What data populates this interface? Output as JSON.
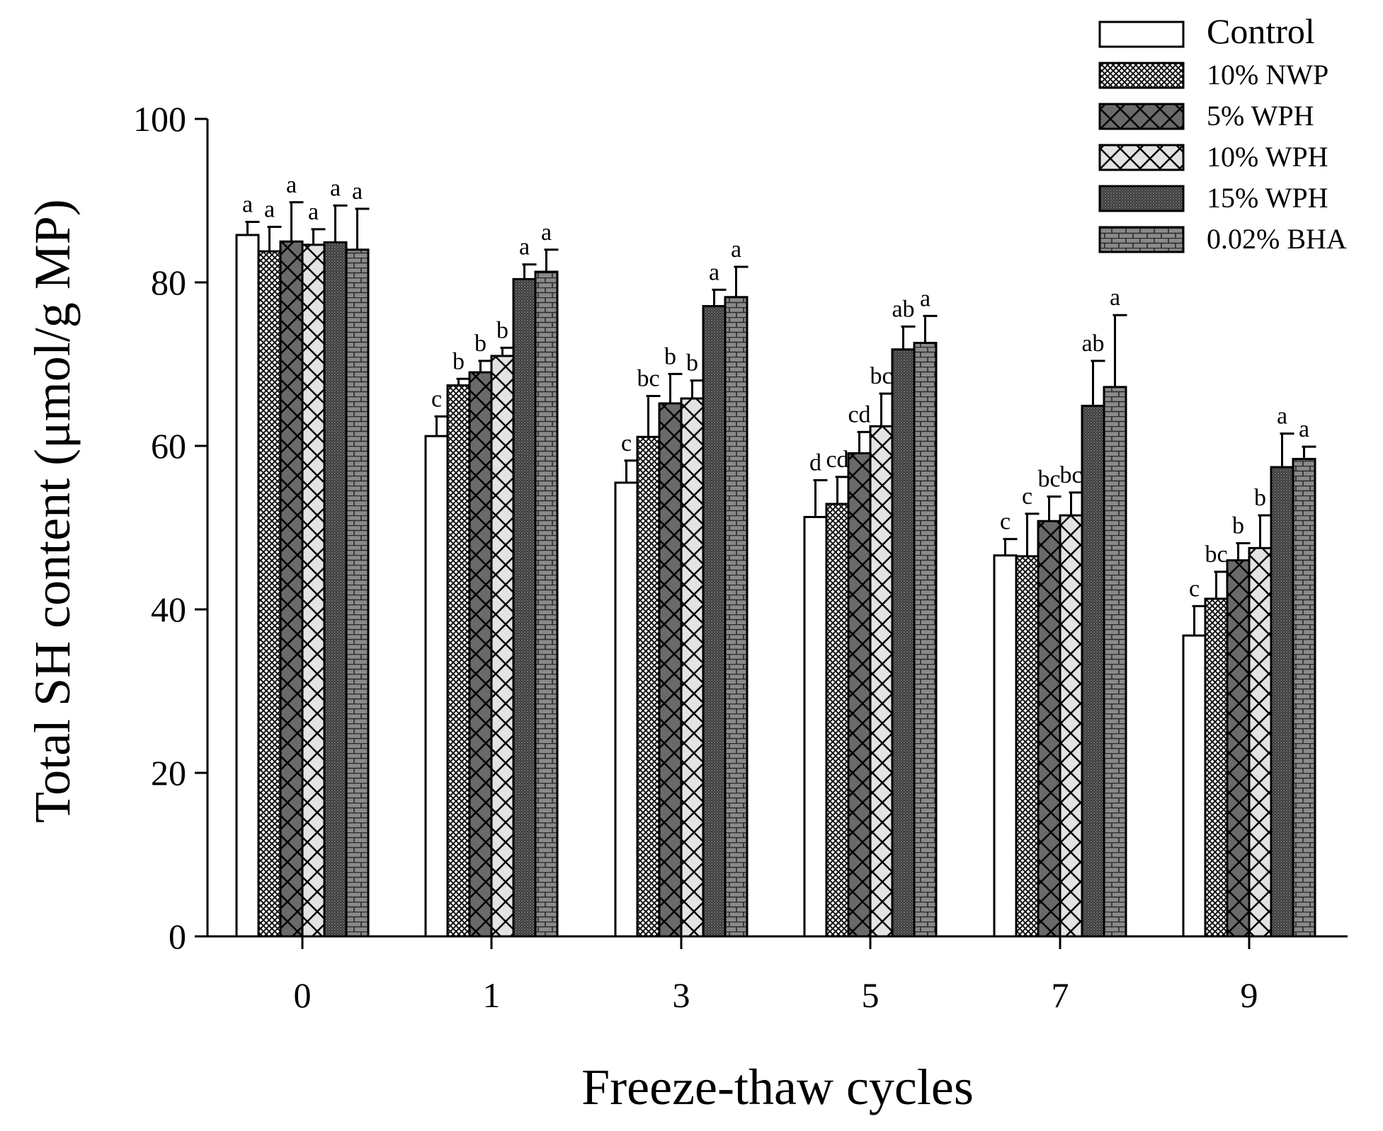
{
  "chart_data": {
    "type": "bar",
    "xlabel": "Freeze-thaw cycles",
    "ylabel": "Total SH content (μmol/g MP)",
    "ylim": [
      0,
      100
    ],
    "yticks": [
      "0",
      "20",
      "40",
      "60",
      "80",
      "100"
    ],
    "categories": [
      "0",
      "1",
      "3",
      "5",
      "7",
      "9"
    ],
    "grid": false,
    "legend_position": "top-right",
    "error_bars": true,
    "series": [
      {
        "name": "Control",
        "pattern": "plain",
        "values": [
          85.8,
          61.2,
          55.5,
          51.3,
          46.6,
          36.8
        ],
        "errors": [
          1.6,
          2.4,
          2.7,
          4.5,
          2.0,
          3.6
        ],
        "labels": [
          "a",
          "c",
          "c",
          "d",
          "c",
          "c"
        ]
      },
      {
        "name": "10% NWP",
        "pattern": "crosshatch",
        "values": [
          83.8,
          67.4,
          61.1,
          52.9,
          46.5,
          41.3
        ],
        "errors": [
          3.0,
          0.8,
          5.0,
          3.3,
          5.2,
          3.3
        ],
        "labels": [
          "a",
          "b",
          "bc",
          "cd",
          "c",
          "bc"
        ]
      },
      {
        "name": "5% WPH",
        "pattern": "diamond-dark",
        "values": [
          85.0,
          69.0,
          65.2,
          59.1,
          50.8,
          46.0
        ],
        "errors": [
          4.8,
          1.4,
          3.6,
          2.6,
          3.0,
          2.1
        ],
        "labels": [
          "a",
          "b",
          "b",
          "cd",
          "bc",
          "b"
        ]
      },
      {
        "name": "10% WPH",
        "pattern": "diamond-light",
        "values": [
          84.6,
          71.0,
          65.8,
          62.4,
          51.5,
          47.5
        ],
        "errors": [
          1.9,
          1.0,
          2.2,
          4.0,
          2.8,
          4.0
        ],
        "labels": [
          "a",
          "b",
          "b",
          "bc",
          "bc",
          "b"
        ]
      },
      {
        "name": "15% WPH",
        "pattern": "dense-dark",
        "values": [
          84.9,
          80.4,
          77.1,
          71.8,
          64.9,
          57.4
        ],
        "errors": [
          4.5,
          1.8,
          2.0,
          2.8,
          5.5,
          4.1
        ],
        "labels": [
          "a",
          "a",
          "a",
          "ab",
          "ab",
          "a"
        ]
      },
      {
        "name": "0.02% BHA",
        "pattern": "brick",
        "values": [
          84.0,
          81.3,
          78.2,
          72.6,
          67.2,
          58.4
        ],
        "errors": [
          5.0,
          2.7,
          3.7,
          3.3,
          8.8,
          1.5
        ],
        "labels": [
          "a",
          "a",
          "a",
          "a",
          "a",
          "a"
        ]
      }
    ]
  }
}
